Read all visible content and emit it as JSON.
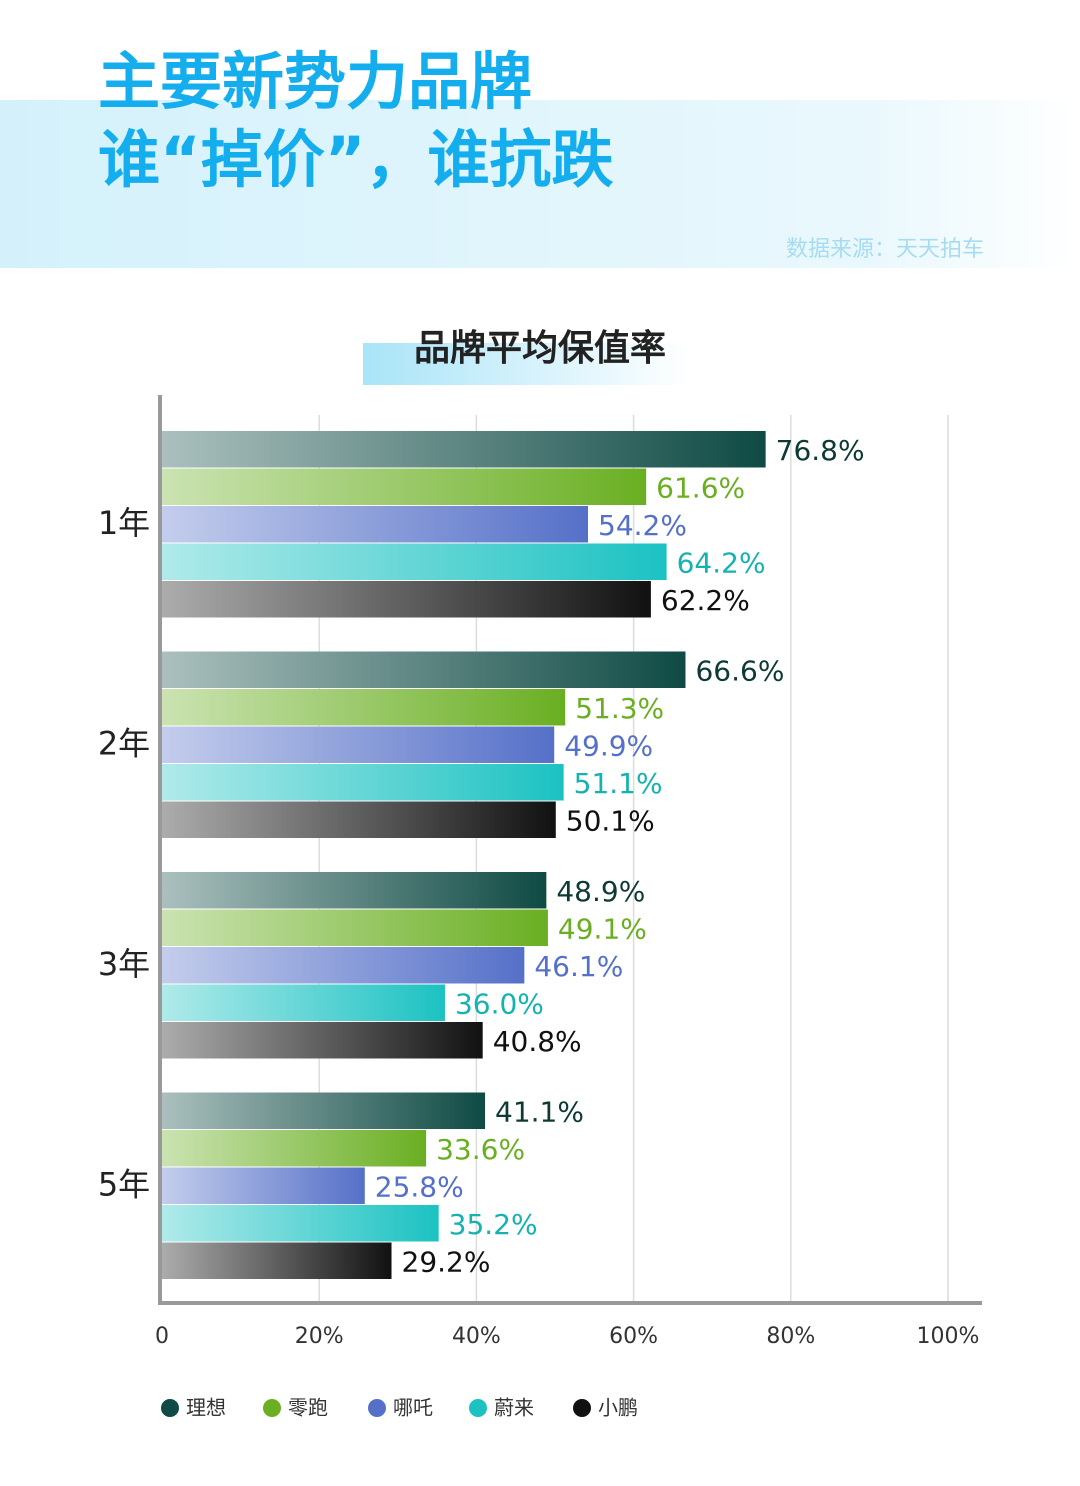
{
  "header": {
    "title_line1": "主要新势力品牌",
    "title_line2": "谁“掉价”，谁抗跌",
    "source": "数据来源：天天拍车"
  },
  "chart_data": {
    "type": "bar",
    "orientation": "horizontal",
    "title": "品牌平均保值率",
    "categories": [
      "1年",
      "2年",
      "3年",
      "5年"
    ],
    "series": [
      {
        "name": "理想",
        "color": "#0f4a44",
        "values": [
          76.8,
          66.6,
          48.9,
          41.1
        ],
        "value_labels": [
          "76.8%",
          "66.6%",
          "48.9%",
          "41.1%"
        ]
      },
      {
        "name": "零跑",
        "color": "#6aaf22",
        "values": [
          61.6,
          51.3,
          49.1,
          33.6
        ],
        "value_labels": [
          "61.6%",
          "51.3%",
          "49.1%",
          "33.6%"
        ]
      },
      {
        "name": "哪吒",
        "color": "#5570c8",
        "values": [
          54.2,
          49.9,
          46.1,
          25.8
        ],
        "value_labels": [
          "54.2%",
          "49.9%",
          "46.1%",
          "25.8%"
        ]
      },
      {
        "name": "蔚来",
        "color": "#1cc2c2",
        "values": [
          64.2,
          51.1,
          36.0,
          35.2
        ],
        "value_labels": [
          "64.2%",
          "51.1%",
          "36.0%",
          "35.2%"
        ]
      },
      {
        "name": "小鹏",
        "color": "#111111",
        "values": [
          62.2,
          50.1,
          40.8,
          29.2
        ],
        "value_labels": [
          "62.2%",
          "50.1%",
          "40.8%",
          "29.2%"
        ]
      }
    ],
    "xlim": [
      0,
      100
    ],
    "xticks": [
      0,
      {
        "value": 20,
        "label": "20%"
      },
      {
        "value": 40,
        "label": "40%"
      },
      {
        "value": 60,
        "label": "60%"
      },
      {
        "value": 80,
        "label": "80%"
      },
      {
        "value": 100,
        "label": "100%"
      }
    ],
    "grid": true
  }
}
